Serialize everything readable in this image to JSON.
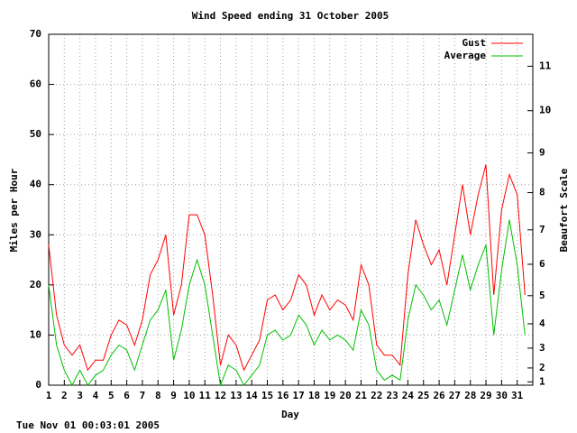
{
  "chart_data": {
    "type": "line",
    "title": "Wind Speed ending 31 October 2005",
    "xlabel": "Day",
    "ylabel": "Miles per Hour",
    "y2label": "Beaufort Scale",
    "footer": "Tue Nov 01 00:03:01 2005",
    "x": [
      1,
      1.5,
      2,
      2.5,
      3,
      3.5,
      4,
      4.5,
      5,
      5.5,
      6,
      6.5,
      7,
      7.5,
      8,
      8.5,
      9,
      9.5,
      10,
      10.5,
      11,
      11.5,
      12,
      12.5,
      13,
      13.5,
      14,
      14.5,
      15,
      15.5,
      16,
      16.5,
      17,
      17.5,
      18,
      18.5,
      19,
      19.5,
      20,
      20.5,
      21,
      21.5,
      22,
      22.5,
      23,
      23.5,
      24,
      24.5,
      25,
      25.5,
      26,
      26.5,
      27,
      27.5,
      28,
      28.5,
      29,
      29.5,
      30,
      30.5,
      31,
      31.5
    ],
    "series": [
      {
        "name": "Gust",
        "color": "#ff0000",
        "values": [
          28,
          14,
          8,
          6,
          8,
          3,
          5,
          5,
          10,
          13,
          12,
          8,
          13,
          22,
          25,
          30,
          14,
          20,
          34,
          34,
          30,
          18,
          4,
          10,
          8,
          3,
          6,
          9,
          17,
          18,
          15,
          17,
          22,
          20,
          14,
          18,
          15,
          17,
          16,
          13,
          24,
          20,
          8,
          6,
          6,
          4,
          22,
          33,
          28,
          24,
          27,
          20,
          30,
          40,
          30,
          38,
          44,
          18,
          35,
          42,
          38,
          18
        ]
      },
      {
        "name": "Average",
        "color": "#00c000",
        "values": [
          20,
          8,
          3,
          0,
          3,
          0,
          2,
          3,
          6,
          8,
          7,
          3,
          8,
          13,
          15,
          19,
          5,
          11,
          20,
          25,
          20,
          10,
          0,
          4,
          3,
          0,
          2,
          4,
          10,
          11,
          9,
          10,
          14,
          12,
          8,
          11,
          9,
          10,
          9,
          7,
          15,
          12,
          3,
          1,
          2,
          1,
          13,
          20,
          18,
          15,
          17,
          12,
          19,
          26,
          19,
          24,
          28,
          10,
          23,
          33,
          24,
          10
        ]
      }
    ],
    "xlim": [
      1,
      32
    ],
    "xticks": [
      1,
      2,
      3,
      4,
      5,
      6,
      7,
      8,
      9,
      10,
      11,
      12,
      13,
      14,
      15,
      16,
      17,
      18,
      19,
      20,
      21,
      22,
      23,
      24,
      25,
      26,
      27,
      28,
      29,
      30,
      31
    ],
    "ylim": [
      0,
      70
    ],
    "yticks": [
      0,
      10,
      20,
      30,
      40,
      50,
      60,
      70
    ],
    "y2scale": "beaufort",
    "y2lim": [
      0.5,
      11.69
    ],
    "y2ticks": [
      1,
      2,
      3,
      4,
      5,
      6,
      7,
      8,
      9,
      10,
      11
    ],
    "grid": true,
    "legend": "top-right"
  }
}
